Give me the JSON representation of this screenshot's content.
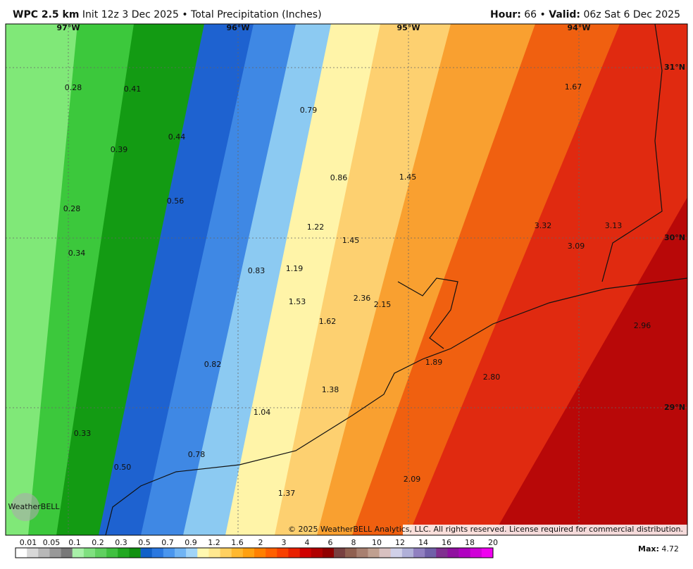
{
  "header": {
    "model": "WPC 2.5 km",
    "init": "Init 12z 3 Dec 2025",
    "sep1": "•",
    "product": "Total Precipitation (Inches)",
    "hour_label": "Hour:",
    "hour": "66",
    "sep2": "•",
    "valid_label": "Valid:",
    "valid": "06z Sat 6 Dec 2025"
  },
  "map": {
    "lon_labels": [
      "97°W",
      "96°W",
      "95°W",
      "94°W"
    ],
    "lat_labels": [
      "31°N",
      "30°N",
      "29°N"
    ],
    "point_labels": [
      "0.28",
      "0.41",
      "0.79",
      "1.67",
      "0.44",
      "0.39",
      "0.86",
      "1.45",
      "0.56",
      "0.28",
      "1.22",
      "3.32",
      "3.13",
      "1.45",
      "3.09",
      "0.34",
      "0.83",
      "1.19",
      "2.36",
      "2.15",
      "1.53",
      "1.62",
      "2.96",
      "1.89",
      "0.82",
      "2.80",
      "1.38",
      "1.04",
      "0.33",
      "0.78",
      "0.50",
      "2.09",
      "1.37"
    ],
    "logo": "WeatherBELL",
    "copyright": "© 2025 WeatherBELL Analytics, LLC. All rights reserved. License required for commercial distribution."
  },
  "legend": {
    "labels": [
      "0.01",
      "0.05",
      "0.1",
      "0.2",
      "0.3",
      "0.5",
      "0.7",
      "0.9",
      "1.2",
      "1.6",
      "2",
      "3",
      "4",
      "6",
      "8",
      "10",
      "12",
      "14",
      "16",
      "18",
      "20"
    ],
    "colors": [
      "#ffffff",
      "#d8d8d8",
      "#b8b8b8",
      "#989898",
      "#787878",
      "#a8f0a8",
      "#80e080",
      "#60d060",
      "#40c040",
      "#20a820",
      "#109010",
      "#1060c8",
      "#2a78e0",
      "#4a96ee",
      "#70b4f4",
      "#a0d4f8",
      "#fff8b0",
      "#ffe890",
      "#ffd060",
      "#ffb830",
      "#ffa010",
      "#ff8000",
      "#ff6000",
      "#f84000",
      "#e82000",
      "#d00000",
      "#b00000",
      "#900000",
      "#784040",
      "#906050",
      "#a88070",
      "#c0a090",
      "#d8c0c0",
      "#d0d0e8",
      "#b0b0d8",
      "#9080c0",
      "#7060a8",
      "#803090",
      "#9010a0",
      "#b000c0",
      "#d000d8",
      "#f000f0"
    ],
    "max_label": "Max:",
    "max": "4.72"
  }
}
